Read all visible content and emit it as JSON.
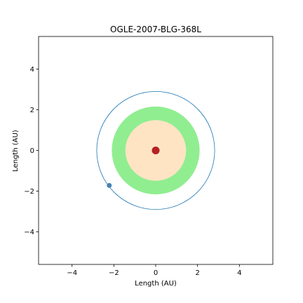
{
  "chart_data": {
    "type": "scatter",
    "title": "OGLE-2007-BLG-368L",
    "xlabel": "Length (AU)",
    "ylabel": "Length (AU)",
    "xlim": [
      -5.6,
      5.6
    ],
    "ylim": [
      -5.6,
      5.6
    ],
    "xticks": [
      -4,
      -2,
      0,
      2,
      4
    ],
    "yticks": [
      -4,
      -2,
      0,
      2,
      4
    ],
    "tick_labels": [
      "−4",
      "−2",
      "0",
      "2",
      "4"
    ],
    "grid": false,
    "star": {
      "x": 0,
      "y": 0,
      "color": "#b22222"
    },
    "zones": [
      {
        "inner_radius": 1.45,
        "outer_radius": 2.1,
        "color": "#90ee90"
      },
      {
        "inner_radius": 0,
        "outer_radius": 1.45,
        "color": "#ffe4c4"
      }
    ],
    "orbit": {
      "radius": 2.82,
      "color": "#1f77b4"
    },
    "planet": {
      "x": -2.22,
      "y": -1.72,
      "color": "#4682b4"
    }
  }
}
